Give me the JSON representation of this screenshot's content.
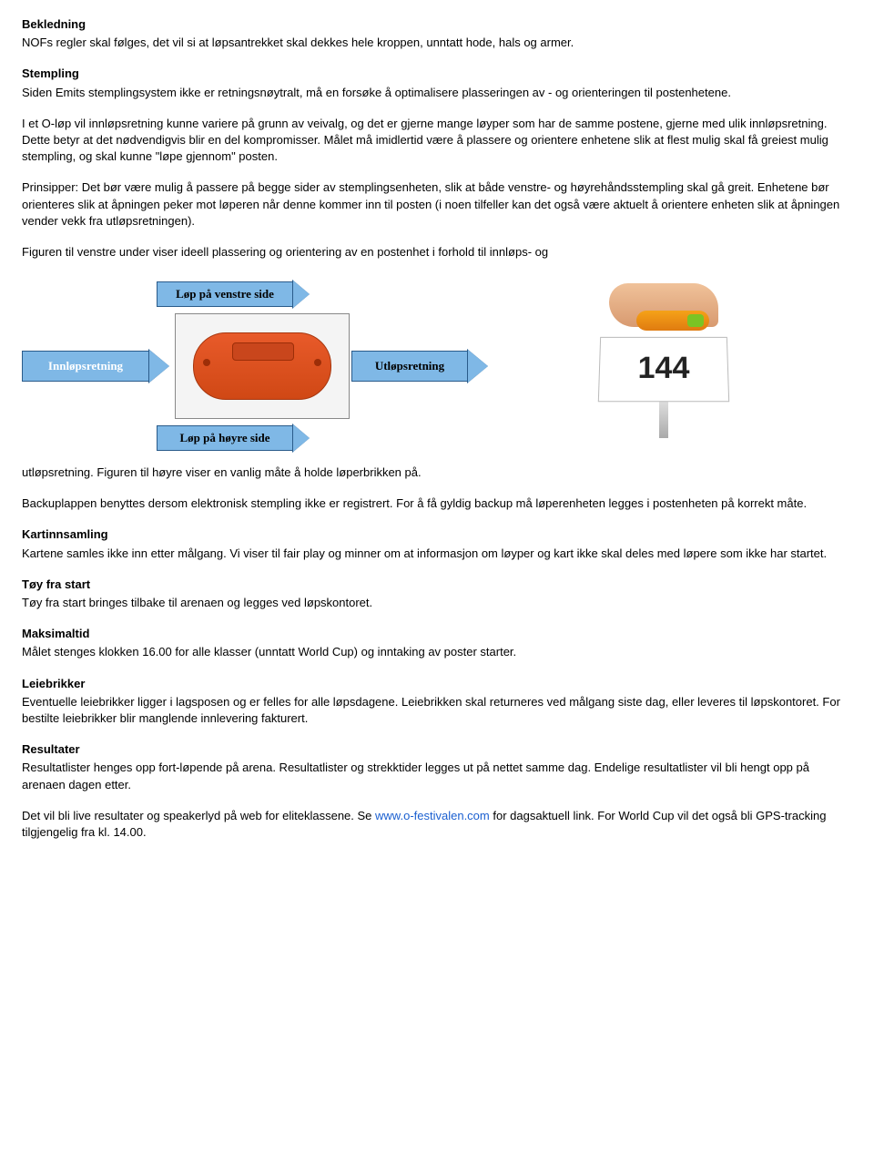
{
  "sections": {
    "bekledning": {
      "heading": "Bekledning",
      "body": "NOFs regler skal følges, det vil si at løpsantrekket skal dekkes hele kroppen, unntatt hode, hals og armer."
    },
    "stempling": {
      "heading": "Stempling",
      "p1": "Siden Emits stemplingsystem ikke er retningsnøytralt, må en forsøke å optimalisere plasseringen av - og orienteringen til postenhetene.",
      "p2": "I et O-løp vil innløpsretning kunne variere på grunn av veivalg, og det er gjerne mange løyper som har de samme postene, gjerne med ulik innløpsretning. Dette betyr at det nødvendigvis blir en del kompromisser. Målet må imidlertid være å plassere og orientere enhetene slik at flest mulig skal få greiest mulig stempling, og skal kunne \"løpe gjennom\" posten.",
      "p3": "Prinsipper: Det bør være mulig å passere på begge sider av stemplingsenheten, slik at både venstre- og høyrehåndsstempling skal gå greit. Enhetene bør orienteres slik at åpningen peker mot løperen når denne kommer inn til posten (i noen tilfeller kan det også være aktuelt å orientere enheten slik at åpningen vender vekk fra utløpsretningen).",
      "p4": "Figuren til venstre under viser ideell plassering og orientering av en postenhet i forhold til innløps- og",
      "p5": "utløpsretning.  Figuren til høyre viser en vanlig måte å holde løperbrikken på.",
      "p6": "Backuplappen benyttes dersom elektronisk stempling ikke er registrert.  For å få gyldig backup må løperenheten legges i postenheten på korrekt måte."
    },
    "kartinnsamling": {
      "heading": "Kartinnsamling",
      "body": "Kartene samles ikke inn etter målgang. Vi viser til fair play og minner om at informasjon om løyper og kart ikke skal deles med løpere som ikke har startet."
    },
    "toy": {
      "heading": "Tøy fra start",
      "body": "Tøy fra start bringes tilbake til arenaen og legges ved løpskontoret."
    },
    "maksimaltid": {
      "heading": "Maksimaltid",
      "body": "Målet stenges klokken 16.00 for alle klasser (unntatt World Cup) og inntaking av poster starter."
    },
    "leiebrikker": {
      "heading": "Leiebrikker",
      "body": "Eventuelle leiebrikker ligger i lagsposen og er felles for alle løpsdagene.  Leiebrikken skal returneres ved målgang siste dag, eller leveres til løpskontoret. For bestilte leiebrikker blir manglende innlevering fakturert."
    },
    "resultater": {
      "heading": "Resultater",
      "p1": "Resultatlister henges opp fort-løpende på arena. Resultatlister og strekktider legges ut på nettet samme dag. Endelige resultatlister vil bli hengt opp på arenaen dagen etter.",
      "p2a": "Det vil bli live resultater og speakerlyd på web for eliteklassene. Se ",
      "link_text": "www.o-festivalen.com",
      "p2b": " for dagsaktuell link. For World Cup vil det også bli GPS-tracking tilgjengelig fra kl. 14.00."
    }
  },
  "diagram": {
    "innlop": "Innløpsretning",
    "utlop": "Utløpsretning",
    "venstre": "Løp på venstre side",
    "hoyre": "Løp på høyre side",
    "card_number": "144"
  }
}
